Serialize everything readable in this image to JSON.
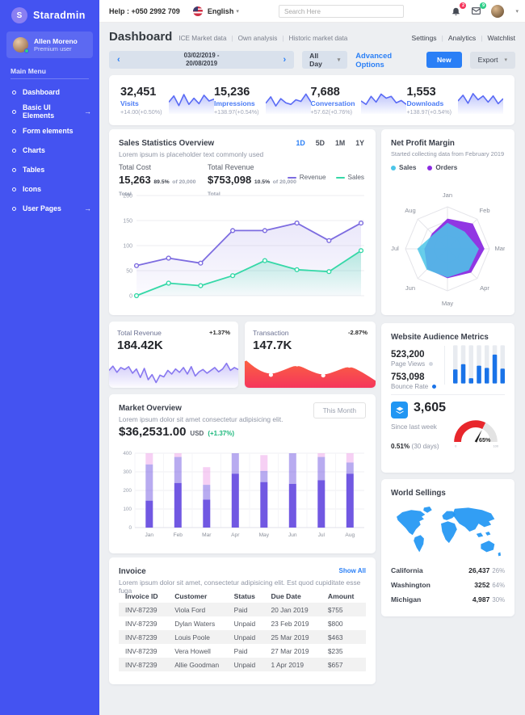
{
  "colors": {
    "sidebar_blue": "#4453f1",
    "accent_blue": "#2a7ff6",
    "purple": "#7d6ce0",
    "green": "#35d8a7",
    "red": "#f5365c",
    "cyan": "#4cc5e8",
    "orders_purple": "#8b2be2",
    "map_blue": "#2196f3",
    "spark_blue": "#5a6bf5"
  },
  "sidebar": {
    "logo_initial": "S",
    "logo_text": "Staradmin",
    "user": {
      "name": "Allen Moreno",
      "role": "Premium user"
    },
    "menu_header": "Main Menu",
    "items": [
      {
        "label": "Dashboard",
        "arrow": ""
      },
      {
        "label": "Basic UI Elements",
        "arrow": "→"
      },
      {
        "label": "Form elements",
        "arrow": ""
      },
      {
        "label": "Charts",
        "arrow": ""
      },
      {
        "label": "Tables",
        "arrow": ""
      },
      {
        "label": "Icons",
        "arrow": ""
      },
      {
        "label": "User Pages",
        "arrow": "→"
      }
    ]
  },
  "topbar": {
    "help_label": "Help : +050 2992 709",
    "language": "English",
    "search_placeholder": "Search Here",
    "notification_count": "2",
    "message_count": "9"
  },
  "header": {
    "title": "Dashboard",
    "breadcrumbs": [
      "ICE Market data",
      "Own analysis",
      "Historic market data"
    ],
    "links": [
      "Settings",
      "Analytics",
      "Watchlist"
    ]
  },
  "toolbar": {
    "date_range": "03/02/2019 - 20/08/2019",
    "all_day_label": "All Day",
    "advanced_options_label": "Advanced Options",
    "new_label": "New",
    "export_label": "Export"
  },
  "stats": [
    {
      "value": "32,451",
      "label": "Visits",
      "delta": "+14.00(+0.50%)",
      "chart": "visits-spark"
    },
    {
      "value": "15,236",
      "label": "Impressions",
      "delta": "+138.97(+0.54%)",
      "chart": "impressions-spark"
    },
    {
      "value": "7,688",
      "label": "Conversation",
      "delta": "+57.62(+0.76%)",
      "chart": "conversation-spark"
    },
    {
      "value": "1,553",
      "label": "Downloads",
      "delta": "+138.97(+0.54%)",
      "chart": "downloads-spark"
    }
  ],
  "sales_statistics": {
    "title": "Sales Statistics Overview",
    "subtitle": "Lorem ipsum is placeholder text commonly used",
    "tabs": [
      "1D",
      "5D",
      "1M",
      "1Y"
    ],
    "active_tab": "1D",
    "total_cost_label": "Total Cost",
    "total_cost": "15,263",
    "total_cost_pct": "89.5%",
    "total_cost_note": "of 20,000 Total",
    "total_revenue_label": "Total Revenue",
    "total_revenue": "$753,098",
    "total_revenue_pct": "10.5%",
    "total_revenue_note": "of 20,000 Total",
    "legend_revenue": "Revenue",
    "legend_sales": "Sales"
  },
  "net_profit": {
    "title": "Net Profit Margin",
    "subtitle": "Started collecting data from February 2019",
    "legend_sales": "Sales",
    "legend_orders": "Orders"
  },
  "revenue_card": {
    "title": "Total Revenue",
    "delta": "+1.37%",
    "value": "184.42K"
  },
  "transaction_card": {
    "title": "Transaction",
    "delta": "-2.87%",
    "value": "147.7K"
  },
  "market": {
    "title": "Market Overview",
    "subtitle": "Lorem ipsum dolor sit amet consectetur adipisicing elit.",
    "value": "$36,2531.00",
    "currency": "USD",
    "delta": "(+1.37%)",
    "period_label": "This Month"
  },
  "audience": {
    "title": "Website Audience Metrics",
    "page_views": "523,200",
    "page_views_label": "Page Views",
    "bounce_rate": "753,098",
    "bounce_rate_label": "Bounce Rate",
    "weekly_value": "3,605",
    "weekly_label": "Since last week",
    "monthly_bold": "0.51%",
    "monthly_rest": "(30 days)"
  },
  "invoice": {
    "title": "Invoice",
    "show_all": "Show All",
    "subtitle": "Lorem ipsum dolor sit amet, consectetur adipisicing elit. Est quod cupiditate esse fuga",
    "columns": [
      "Invoice ID",
      "Customer",
      "Status",
      "Due Date",
      "Amount"
    ],
    "rows": [
      {
        "id": "INV-87239",
        "customer": "Viola Ford",
        "status": "Paid",
        "due": "20 Jan 2019",
        "amount": "$755"
      },
      {
        "id": "INV-87239",
        "customer": "Dylan Waters",
        "status": "Unpaid",
        "due": "23 Feb 2019",
        "amount": "$800"
      },
      {
        "id": "INV-87239",
        "customer": "Louis Poole",
        "status": "Unpaid",
        "due": "25 Mar 2019",
        "amount": "$463"
      },
      {
        "id": "INV-87239",
        "customer": "Vera Howell",
        "status": "Paid",
        "due": "27 Mar 2019",
        "amount": "$235"
      },
      {
        "id": "INV-87239",
        "customer": "Allie Goodman",
        "status": "Unpaid",
        "due": "1 Apr 2019",
        "amount": "$657"
      }
    ]
  },
  "world": {
    "title": "World Sellings",
    "regions": [
      {
        "name": "California",
        "value": "26,437",
        "pct": "26%"
      },
      {
        "name": "Washington",
        "value": "3252",
        "pct": "64%"
      },
      {
        "name": "Michigan",
        "value": "4,987",
        "pct": "30%"
      }
    ]
  },
  "chart_data": [
    {
      "id": "visits-spark",
      "type": "sparkline",
      "color": "#5a6bf5",
      "values": [
        45,
        72,
        30,
        78,
        35,
        62,
        38,
        75,
        50,
        58
      ]
    },
    {
      "id": "impressions-spark",
      "type": "sparkline",
      "color": "#5a6bf5",
      "values": [
        40,
        68,
        28,
        60,
        42,
        35,
        55,
        48,
        80,
        45
      ]
    },
    {
      "id": "conversation-spark",
      "type": "sparkline",
      "color": "#5a6bf5",
      "values": [
        50,
        35,
        70,
        45,
        80,
        62,
        70,
        42,
        52,
        35
      ]
    },
    {
      "id": "downloads-spark",
      "type": "sparkline",
      "color": "#5a6bf5",
      "values": [
        50,
        75,
        40,
        82,
        55,
        72,
        45,
        72,
        38,
        60
      ]
    },
    {
      "id": "sales-overview",
      "type": "line",
      "title": "Sales Statistics Overview",
      "yticks": [
        0,
        50,
        100,
        150,
        200
      ],
      "ymax": 200,
      "categories": [
        "1",
        "2",
        "3",
        "4",
        "5",
        "6",
        "7",
        "8"
      ],
      "series": [
        {
          "name": "Revenue",
          "color": "#7d6ce0",
          "values": [
            60,
            75,
            65,
            130,
            130,
            145,
            110,
            145
          ]
        },
        {
          "name": "Sales",
          "color": "#35d8a7",
          "values": [
            0,
            25,
            20,
            40,
            70,
            52,
            48,
            90
          ]
        }
      ]
    },
    {
      "id": "net-profit-radar",
      "type": "radar",
      "title": "Net Profit Margin",
      "axes": [
        "Jan",
        "Feb",
        "Mar",
        "Apr",
        "May",
        "Jun",
        "Jul",
        "Aug"
      ],
      "max": 100,
      "series": [
        {
          "name": "Orders",
          "color": "#8b2be2",
          "values": [
            72,
            85,
            88,
            80,
            70,
            68,
            55,
            52
          ]
        },
        {
          "name": "Sales",
          "color": "#4cc5e8",
          "values": [
            62,
            58,
            75,
            72,
            68,
            70,
            72,
            48
          ]
        }
      ]
    },
    {
      "id": "revenue-spark",
      "type": "sparkline",
      "color": "#8878f0",
      "values": [
        55,
        70,
        48,
        65,
        58,
        68,
        45,
        60,
        30,
        62,
        22,
        40,
        12,
        38,
        32,
        55,
        42,
        60,
        48,
        65,
        42,
        68,
        35,
        50,
        58,
        45,
        55,
        65,
        50,
        60,
        80,
        55,
        65,
        58
      ]
    },
    {
      "id": "transaction-wave",
      "type": "wave",
      "color_top": "#fb6340",
      "color_bottom": "#f5365c",
      "points": [
        [
          0,
          88
        ],
        [
          10,
          55
        ],
        [
          20,
          40
        ],
        [
          30,
          55
        ],
        [
          40,
          72
        ],
        [
          50,
          52
        ],
        [
          60,
          38
        ],
        [
          70,
          52
        ],
        [
          80,
          68
        ],
        [
          90,
          48
        ],
        [
          100,
          22
        ]
      ],
      "dots": [
        0,
        2,
        4,
        6,
        8
      ]
    },
    {
      "id": "audience-bars",
      "type": "track-bars",
      "color": "#1a73e8",
      "track": "#e8ebf0",
      "values": [
        38,
        52,
        14,
        48,
        42,
        78,
        40
      ]
    },
    {
      "id": "conversion-gauge",
      "type": "gauge",
      "value": 65,
      "label": "65%",
      "min": "0",
      "max": "100",
      "color": "#e8272c",
      "track": "#e3e3e3"
    },
    {
      "id": "market-bars",
      "type": "stacked-bars",
      "title": "Market Overview",
      "categories": [
        "Jan",
        "Feb",
        "Mar",
        "Apr",
        "May",
        "Jun",
        "Jul",
        "Aug"
      ],
      "yticks": [
        0,
        100,
        200,
        300,
        400
      ],
      "ymax": 400,
      "colors": [
        "#7158e2",
        "rgba(113,88,226,0.5)",
        "rgba(235,150,230,0.45)"
      ],
      "series": [
        {
          "name": "solid",
          "values": [
            145,
            240,
            150,
            290,
            245,
            235,
            255,
            290
          ]
        },
        {
          "name": "light",
          "values": [
            195,
            140,
            80,
            110,
            60,
            165,
            125,
            60
          ]
        },
        {
          "name": "pink",
          "values": [
            60,
            20,
            95,
            0,
            85,
            0,
            20,
            50
          ]
        }
      ]
    },
    {
      "id": "world-map",
      "type": "map",
      "color": "#2196f3"
    }
  ]
}
